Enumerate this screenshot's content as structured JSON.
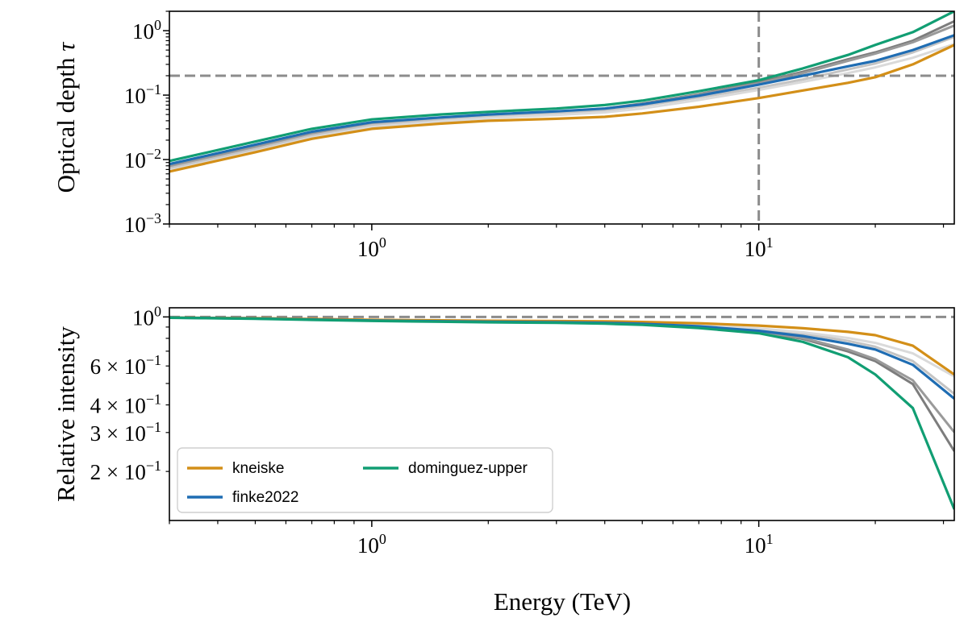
{
  "chart_data": [
    {
      "type": "line",
      "panel": "top",
      "ylabel": "Optical depth",
      "ylabel_symbol": "τ",
      "xscale": "log",
      "yscale": "log",
      "xlim": [
        0.3,
        32
      ],
      "ylim": [
        0.001,
        2
      ],
      "xticks": [
        {
          "base": "10",
          "exp": "0",
          "value": 1
        },
        {
          "base": "10",
          "exp": "1",
          "value": 10
        }
      ],
      "yticks": [
        {
          "base": "10",
          "exp": "0",
          "value": 1
        },
        {
          "base": "10",
          "exp": "−1",
          "value": 0.1
        },
        {
          "base": "10",
          "exp": "−2",
          "value": 0.01
        },
        {
          "base": "10",
          "exp": "−3",
          "value": 0.001
        }
      ],
      "reference_lines": {
        "vertical_x": 10,
        "horizontal_y": 0.2
      },
      "x": [
        0.3,
        0.5,
        0.7,
        1,
        1.5,
        2,
        3,
        4,
        5,
        7,
        10,
        13,
        17,
        20,
        25,
        32
      ],
      "series": [
        {
          "name": "kneiske",
          "color": "#d38f18",
          "values": [
            0.0065,
            0.013,
            0.021,
            0.03,
            0.036,
            0.04,
            0.043,
            0.046,
            0.052,
            0.066,
            0.09,
            0.118,
            0.155,
            0.19,
            0.3,
            0.6
          ]
        },
        {
          "name": "finke2022",
          "color": "#1f6db3",
          "values": [
            0.0085,
            0.017,
            0.027,
            0.038,
            0.045,
            0.05,
            0.056,
            0.062,
            0.072,
            0.098,
            0.145,
            0.2,
            0.28,
            0.34,
            0.5,
            0.85
          ]
        },
        {
          "name": "dominguez-upper",
          "color": "#119e73",
          "values": [
            0.0095,
            0.019,
            0.03,
            0.042,
            0.05,
            0.055,
            0.062,
            0.07,
            0.082,
            0.115,
            0.17,
            0.26,
            0.42,
            0.6,
            0.95,
            2.0
          ]
        }
      ],
      "background_series": [
        {
          "name": "",
          "values": [
            0.008,
            0.016,
            0.026,
            0.037,
            0.044,
            0.049,
            0.055,
            0.062,
            0.074,
            0.104,
            0.158,
            0.23,
            0.36,
            0.46,
            0.7,
            1.4
          ]
        },
        {
          "name": "",
          "values": [
            0.0078,
            0.0155,
            0.025,
            0.036,
            0.043,
            0.048,
            0.054,
            0.061,
            0.073,
            0.102,
            0.152,
            0.22,
            0.34,
            0.44,
            0.66,
            1.2
          ]
        },
        {
          "name": "",
          "values": [
            0.0073,
            0.0145,
            0.0235,
            0.034,
            0.041,
            0.046,
            0.052,
            0.058,
            0.068,
            0.092,
            0.13,
            0.175,
            0.25,
            0.31,
            0.46,
            0.8
          ]
        },
        {
          "name": "",
          "values": [
            0.0068,
            0.0135,
            0.022,
            0.032,
            0.039,
            0.044,
            0.049,
            0.054,
            0.062,
            0.084,
            0.12,
            0.16,
            0.22,
            0.27,
            0.38,
            0.62
          ]
        }
      ]
    },
    {
      "type": "line",
      "panel": "bottom",
      "xlabel": "Energy (TeV)",
      "ylabel": "Relative intensity",
      "xscale": "log",
      "yscale": "log",
      "xlim": [
        0.3,
        32
      ],
      "ylim": [
        0.12,
        1.1
      ],
      "xticks": [
        {
          "base": "10",
          "exp": "0",
          "value": 1
        },
        {
          "base": "10",
          "exp": "1",
          "value": 10
        }
      ],
      "yticks": [
        {
          "base": "10",
          "exp": "0",
          "value": 1,
          "mantissa": ""
        },
        {
          "base": "10",
          "exp": "−1",
          "value": 0.6,
          "mantissa": "6 × "
        },
        {
          "base": "10",
          "exp": "−1",
          "value": 0.4,
          "mantissa": "4 × "
        },
        {
          "base": "10",
          "exp": "−1",
          "value": 0.3,
          "mantissa": "3 × "
        },
        {
          "base": "10",
          "exp": "−1",
          "value": 0.2,
          "mantissa": "2 × "
        }
      ],
      "reference_lines": {
        "horizontal_y": 1
      },
      "x": [
        0.3,
        0.5,
        0.7,
        1,
        1.5,
        2,
        3,
        4,
        5,
        7,
        10,
        13,
        17,
        20,
        25,
        32
      ],
      "series": [
        {
          "name": "kneiske",
          "color": "#d38f18",
          "values": [
            0.993,
            0.987,
            0.979,
            0.97,
            0.965,
            0.961,
            0.958,
            0.955,
            0.949,
            0.936,
            0.914,
            0.889,
            0.856,
            0.827,
            0.741,
            0.549
          ]
        },
        {
          "name": "finke2022",
          "color": "#1f6db3",
          "values": [
            0.992,
            0.983,
            0.973,
            0.963,
            0.956,
            0.951,
            0.946,
            0.94,
            0.931,
            0.907,
            0.865,
            0.819,
            0.756,
            0.712,
            0.607,
            0.427
          ]
        },
        {
          "name": "dominguez-upper",
          "color": "#119e73",
          "values": [
            0.991,
            0.981,
            0.97,
            0.959,
            0.951,
            0.946,
            0.94,
            0.932,
            0.921,
            0.891,
            0.844,
            0.771,
            0.657,
            0.549,
            0.387,
            0.135
          ]
        }
      ],
      "background_series": [
        {
          "name": "",
          "values": [
            0.992,
            0.984,
            0.974,
            0.964,
            0.957,
            0.952,
            0.946,
            0.94,
            0.929,
            0.901,
            0.854,
            0.795,
            0.698,
            0.631,
            0.497,
            0.247
          ]
        },
        {
          "name": "",
          "values": [
            0.992,
            0.985,
            0.975,
            0.965,
            0.958,
            0.953,
            0.947,
            0.941,
            0.93,
            0.903,
            0.859,
            0.803,
            0.712,
            0.644,
            0.517,
            0.301
          ]
        },
        {
          "name": "",
          "values": [
            0.993,
            0.986,
            0.977,
            0.967,
            0.96,
            0.955,
            0.949,
            0.944,
            0.934,
            0.912,
            0.878,
            0.839,
            0.779,
            0.733,
            0.631,
            0.449
          ]
        },
        {
          "name": "",
          "values": [
            0.993,
            0.987,
            0.978,
            0.969,
            0.962,
            0.957,
            0.952,
            0.947,
            0.94,
            0.919,
            0.887,
            0.852,
            0.803,
            0.763,
            0.684,
            0.538
          ]
        }
      ]
    }
  ],
  "legend": {
    "location": "lower-left",
    "entries": [
      {
        "label": "kneiske",
        "color": "#d38f18"
      },
      {
        "label": "finke2022",
        "color": "#1f6db3"
      },
      {
        "label": "dominguez-upper",
        "color": "#119e73"
      }
    ]
  },
  "colors": {
    "reference_line": "#8c8c8c",
    "background_lines": [
      "#7d7d7d",
      "#9a9a9a",
      "#c4c4c4",
      "#dadada"
    ]
  }
}
